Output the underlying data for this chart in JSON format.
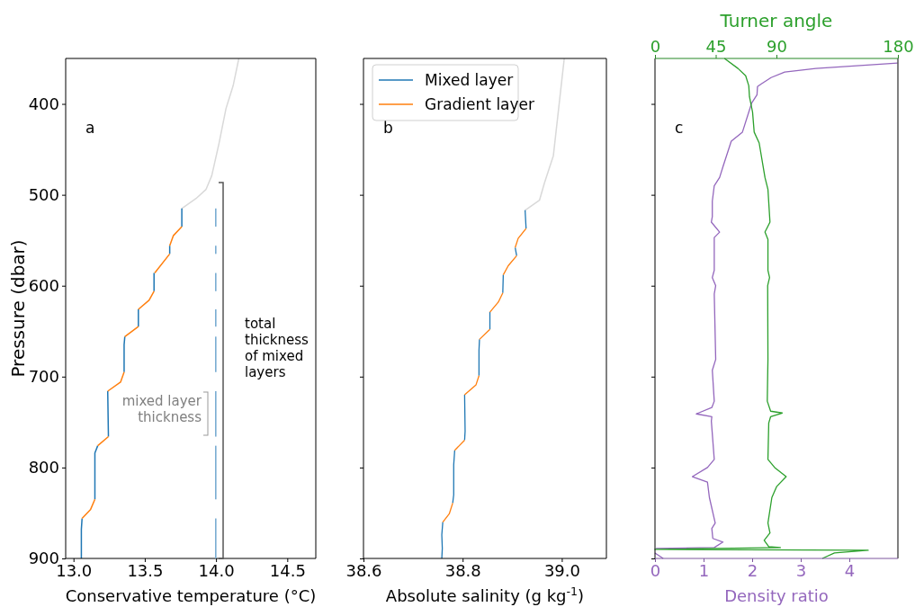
{
  "chart_data": [
    {
      "type": "line",
      "ylabel": "Pressure (dbar)",
      "xlabel": "Conservative temperature (°C)",
      "xlim": [
        12.945,
        14.7
      ],
      "xticks": [
        {
          "value": 13,
          "label": "13.0"
        },
        13.5,
        {
          "value": 14,
          "label": "14.0"
        },
        14.5
      ],
      "ylim": [
        900,
        350
      ],
      "yticks": [
        400,
        500,
        600,
        700,
        800,
        900
      ],
      "annotations": [
        "a",
        "mixed layer\nthickness",
        "total\nthickness\nof mixed\nlayers"
      ],
      "series": [
        {
          "color": "#d9d9d9",
          "x": [
            14.16,
            14.12,
            14.07,
            14.02,
            13.97,
            13.93,
            13.86,
            13.76
          ],
          "values": [
            350,
            380,
            405,
            444,
            479,
            494,
            504,
            515
          ]
        },
        {
          "color": "#1f77b4",
          "x": [
            13.76,
            13.76,
            null,
            13.675,
            13.675,
            null,
            13.565,
            13.565,
            null,
            13.455,
            13.455,
            null,
            13.36,
            13.355,
            13.355,
            null,
            13.24,
            13.245,
            null,
            13.17,
            13.15,
            13.15,
            null,
            13.06,
            13.055,
            13.055
          ],
          "values": [
            515,
            535,
            null,
            556,
            565,
            null,
            586,
            606,
            null,
            626,
            645,
            null,
            656,
            665,
            695,
            null,
            716,
            766,
            null,
            776,
            784,
            835,
            null,
            856,
            868,
            900
          ]
        },
        {
          "color": "#ff7f0e",
          "x": [
            13.76,
            13.7,
            13.675,
            null,
            13.675,
            13.57,
            null,
            13.565,
            13.53,
            13.455,
            null,
            13.455,
            13.36,
            null,
            13.355,
            13.33,
            13.24,
            null,
            13.245,
            13.17,
            null,
            13.15,
            13.12,
            13.06
          ],
          "values": [
            535,
            545,
            556,
            null,
            565,
            586,
            null,
            606,
            616,
            626,
            null,
            645,
            656,
            null,
            695,
            706,
            716,
            null,
            766,
            776,
            null,
            835,
            846,
            856
          ]
        }
      ]
    },
    {
      "type": "line",
      "xlabel": "Absolute salinity (g kg$^{-1}$)",
      "xlim": [
        38.6,
        39.09
      ],
      "xticks": [
        38.6,
        38.8,
        {
          "value": 39,
          "label": "39.0"
        }
      ],
      "ylim": [
        900,
        350
      ],
      "yticks": [
        400,
        500,
        600,
        700,
        800,
        900
      ],
      "tick_labels": "x",
      "legend": "top left",
      "annotations": [
        "b"
      ],
      "series": [
        {
          "color": "#d9d9d9",
          "x": [
            39.005,
            38.998,
            38.983,
            38.965,
            38.955,
            38.926
          ],
          "values": [
            350,
            384,
            457,
            487,
            506,
            517
          ]
        },
        {
          "name": "Mixed layer",
          "color": "#1f77b4",
          "x": [
            38.926,
            38.928,
            null,
            38.906,
            38.909,
            null,
            38.882,
            38.881,
            null,
            38.855,
            38.855,
            null,
            38.834,
            38.833,
            38.833,
            null,
            38.804,
            38.805,
            38.804,
            null,
            38.784,
            38.782,
            38.782,
            38.78,
            null,
            38.76,
            38.758,
            38.759,
            38.758
          ],
          "values": [
            517,
            537,
            null,
            558,
            567,
            null,
            588,
            608,
            null,
            629,
            648,
            null,
            659,
            671,
            699,
            null,
            720,
            760,
            770,
            null,
            781,
            797,
            830,
            839,
            null,
            860,
            874,
            889,
            900
          ]
        },
        {
          "name": "Gradient layer",
          "color": "#ff7f0e",
          "x": [
            38.928,
            38.912,
            38.906,
            null,
            38.909,
            38.892,
            38.882,
            null,
            38.881,
            38.872,
            38.855,
            null,
            38.855,
            38.834,
            null,
            38.833,
            38.827,
            38.804,
            null,
            38.804,
            38.784,
            null,
            38.78,
            38.773,
            38.76
          ],
          "values": [
            537,
            548,
            558,
            null,
            567,
            578,
            588,
            null,
            608,
            618,
            629,
            null,
            648,
            659,
            null,
            699,
            709,
            720,
            null,
            770,
            781,
            null,
            839,
            851,
            860
          ]
        }
      ]
    },
    {
      "type": "line",
      "xlabel": "Density ratio",
      "x2label": "Turner angle",
      "xlim": [
        0,
        5
      ],
      "xticks": [
        0,
        1,
        2,
        3,
        4
      ],
      "x2lim": [
        0,
        180
      ],
      "x2ticks": [
        0,
        45,
        90,
        180
      ],
      "ylim": [
        900,
        350
      ],
      "yticks": [
        400,
        500,
        600,
        700,
        800,
        900
      ],
      "tick_labels": "x",
      "annotations": [
        "c"
      ],
      "series": [
        {
          "color": "#9467bd",
          "x": [
            4.99,
            3.31,
            2.67,
            2.39,
            2.19,
            2.11,
            2.1,
            1.99,
            1.8,
            1.57,
            1.4,
            1.33,
            1.22,
            1.18,
            1.18,
            1.16,
            1.33,
            1.22,
            1.22,
            1.18,
            1.25,
            1.22,
            1.25,
            1.18,
            1.22,
            1.17,
            0.85,
            1.17,
            1.16,
            1.22,
            1.08,
            0.77,
            1.08,
            1.12,
            1.24,
            1.17,
            1.19,
            1.4,
            1.22,
            0.02,
            null,
            0,
            0.17
          ],
          "values": [
            355,
            361,
            365,
            371,
            378,
            381,
            390,
            399,
            431,
            441,
            469,
            481,
            490,
            507,
            524,
            530,
            541,
            547,
            583,
            591,
            600,
            609,
            681,
            693,
            727,
            734,
            741,
            744,
            749,
            791,
            800,
            810,
            816,
            833,
            861,
            867,
            878,
            882,
            888,
            889,
            null,
            894,
            900
          ]
        },
        {
          "color": "#2ca02c",
          "axis": "x2",
          "x": [
            51.5,
            61.5,
            67.2,
            69.5,
            70,
            72.3,
            73.5,
            77.2,
            81.5,
            83.7,
            85.2,
            81.5,
            83.7,
            83.7,
            84.9,
            83.5,
            83.7,
            83.2,
            85.7,
            94.3,
            85.7,
            84.3,
            83.7,
            88.7,
            97.2,
            90.1,
            86.6,
            83.7,
            85.2,
            80.9,
            84.3,
            92.9,
            0,
            158,
            133,
            124
          ],
          "values": [
            350,
            361,
            369,
            380,
            392,
            409,
            431,
            443,
            481,
            494,
            530,
            541,
            549,
            583,
            591,
            600,
            681,
            727,
            738,
            740,
            744,
            751,
            791,
            800,
            810,
            821,
            833,
            861,
            872,
            880,
            887,
            888,
            890,
            891,
            894,
            900
          ]
        }
      ]
    }
  ]
}
